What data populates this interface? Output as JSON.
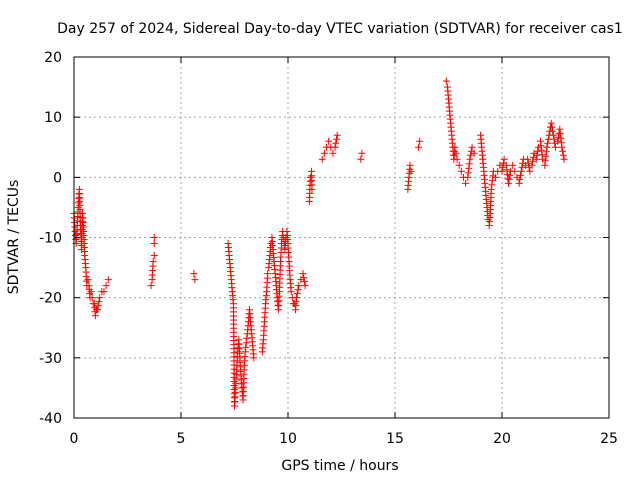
{
  "chart_data": {
    "type": "scatter",
    "title": "Day 257 of 2024, Sidereal Day-to-day VTEC variation (SDTVAR) for receiver cas1",
    "xlabel": "GPS time / hours",
    "ylabel": "SDTVAR / TECUs",
    "xlim": [
      0,
      25
    ],
    "ylim": [
      -40,
      20
    ],
    "xticks": [
      0,
      5,
      10,
      15,
      20,
      25
    ],
    "yticks": [
      -40,
      -30,
      -20,
      -10,
      0,
      10,
      20
    ],
    "xtick_labels": [
      "0",
      "5",
      "10",
      "15",
      "20",
      "25"
    ],
    "ytick_labels": [
      "-40",
      "-30",
      "-20",
      "-10",
      "0",
      "10",
      "20"
    ],
    "grid": true,
    "marker": "plus",
    "marker_color": "#ff0000",
    "series": [
      {
        "name": "SDTVAR",
        "segments": [
          [
            [
              0.0,
              -6
            ],
            [
              0.05,
              -9
            ],
            [
              0.1,
              -11
            ],
            [
              0.15,
              -8
            ],
            [
              0.2,
              -5
            ],
            [
              0.25,
              -2
            ],
            [
              0.3,
              -8
            ],
            [
              0.35,
              -12
            ],
            [
              0.4,
              -6
            ],
            [
              0.45,
              -9
            ],
            [
              0.5,
              -13
            ],
            [
              0.55,
              -15
            ],
            [
              0.6,
              -18
            ],
            [
              0.65,
              -17
            ],
            [
              0.7,
              -18
            ],
            [
              0.75,
              -20
            ],
            [
              0.8,
              -19
            ],
            [
              0.85,
              -20
            ],
            [
              0.9,
              -21
            ],
            [
              0.95,
              -21
            ],
            [
              1.0,
              -23
            ],
            [
              1.05,
              -22
            ],
            [
              1.1,
              -22
            ],
            [
              1.2,
              -20
            ],
            [
              1.3,
              -19
            ],
            [
              1.4,
              -19
            ],
            [
              1.5,
              -18
            ],
            [
              1.6,
              -17
            ]
          ],
          [
            [
              3.6,
              -18
            ],
            [
              3.65,
              -17
            ],
            [
              3.7,
              -14
            ],
            [
              3.75,
              -13
            ]
          ],
          [
            [
              3.75,
              -10
            ],
            [
              3.75,
              -11
            ]
          ],
          [
            [
              5.6,
              -16
            ],
            [
              5.65,
              -17
            ]
          ],
          [
            [
              7.2,
              -11
            ],
            [
              7.25,
              -13
            ],
            [
              7.3,
              -15
            ],
            [
              7.35,
              -17
            ],
            [
              7.4,
              -19
            ],
            [
              7.45,
              -21
            ],
            [
              7.5,
              -38
            ],
            [
              7.55,
              -35
            ],
            [
              7.6,
              -32
            ],
            [
              7.65,
              -29
            ],
            [
              7.7,
              -27
            ],
            [
              7.75,
              -30
            ],
            [
              7.8,
              -33
            ],
            [
              7.85,
              -35
            ],
            [
              7.9,
              -37
            ],
            [
              7.95,
              -32
            ],
            [
              8.0,
              -29
            ],
            [
              8.1,
              -26
            ],
            [
              8.2,
              -22
            ],
            [
              8.4,
              -30
            ]
          ],
          [
            [
              8.8,
              -29
            ],
            [
              8.85,
              -27
            ],
            [
              8.9,
              -24
            ],
            [
              8.95,
              -21
            ],
            [
              9.0,
              -19
            ],
            [
              9.05,
              -16
            ],
            [
              9.1,
              -15
            ],
            [
              9.15,
              -13
            ],
            [
              9.2,
              -11
            ],
            [
              9.25,
              -10
            ],
            [
              9.3,
              -12
            ],
            [
              9.35,
              -14
            ],
            [
              9.4,
              -16
            ],
            [
              9.45,
              -18
            ],
            [
              9.5,
              -20
            ],
            [
              9.55,
              -22
            ],
            [
              9.6,
              -19
            ],
            [
              9.65,
              -14
            ],
            [
              9.7,
              -11
            ],
            [
              9.75,
              -9
            ],
            [
              9.8,
              -10
            ],
            [
              9.85,
              -12
            ],
            [
              9.9,
              -10
            ],
            [
              9.95,
              -9
            ],
            [
              10.0,
              -11
            ],
            [
              10.05,
              -14
            ],
            [
              10.1,
              -17
            ],
            [
              10.15,
              -19
            ],
            [
              10.2,
              -20
            ],
            [
              10.25,
              -21
            ],
            [
              10.3,
              -21
            ],
            [
              10.35,
              -22
            ],
            [
              10.4,
              -20
            ],
            [
              10.5,
              -18
            ],
            [
              10.6,
              -17
            ],
            [
              10.7,
              -16
            ],
            [
              10.8,
              -18
            ]
          ],
          [
            [
              11.0,
              -4
            ],
            [
              11.02,
              -2
            ],
            [
              11.05,
              0
            ],
            [
              11.1,
              1
            ],
            [
              11.12,
              -2
            ]
          ],
          [
            [
              11.6,
              3
            ],
            [
              11.7,
              4
            ],
            [
              11.8,
              5
            ],
            [
              11.9,
              6
            ],
            [
              12.0,
              5
            ],
            [
              12.1,
              4
            ],
            [
              12.2,
              5
            ],
            [
              12.3,
              7
            ]
          ],
          [
            [
              13.4,
              3
            ],
            [
              13.45,
              4
            ]
          ],
          [
            [
              15.6,
              -2
            ],
            [
              15.65,
              0
            ],
            [
              15.7,
              2
            ],
            [
              15.75,
              1
            ]
          ],
          [
            [
              16.1,
              5
            ],
            [
              16.15,
              6
            ]
          ],
          [
            [
              17.4,
              16
            ],
            [
              17.45,
              15
            ],
            [
              17.5,
              13
            ],
            [
              17.55,
              11
            ],
            [
              17.6,
              9
            ],
            [
              17.65,
              7
            ],
            [
              17.7,
              5
            ],
            [
              17.75,
              3
            ],
            [
              17.8,
              5
            ],
            [
              17.85,
              4
            ],
            [
              17.9,
              3
            ],
            [
              18.0,
              2
            ],
            [
              18.1,
              1
            ],
            [
              18.2,
              0
            ],
            [
              18.3,
              -1
            ],
            [
              18.4,
              0
            ],
            [
              18.5,
              3
            ],
            [
              18.6,
              5
            ],
            [
              18.7,
              4
            ]
          ],
          [
            [
              19.0,
              7
            ],
            [
              19.05,
              5
            ],
            [
              19.1,
              3
            ],
            [
              19.15,
              1
            ],
            [
              19.2,
              -1
            ],
            [
              19.25,
              -3
            ],
            [
              19.3,
              -5
            ],
            [
              19.35,
              -7
            ],
            [
              19.4,
              -8
            ],
            [
              19.45,
              -6
            ],
            [
              19.5,
              -2
            ],
            [
              19.6,
              1
            ],
            [
              19.7,
              0
            ],
            [
              19.8,
              1
            ],
            [
              19.9,
              2
            ],
            [
              20.0,
              1
            ],
            [
              20.1,
              3
            ],
            [
              20.2,
              2
            ],
            [
              20.3,
              -1
            ],
            [
              20.4,
              1
            ],
            [
              20.5,
              2
            ],
            [
              20.6,
              1
            ],
            [
              20.7,
              0
            ],
            [
              20.8,
              -1
            ],
            [
              20.9,
              1
            ],
            [
              21.0,
              3
            ],
            [
              21.1,
              2
            ],
            [
              21.2,
              3
            ],
            [
              21.3,
              1
            ],
            [
              21.4,
              2
            ],
            [
              21.5,
              4
            ],
            [
              21.6,
              3
            ],
            [
              21.7,
              5
            ],
            [
              21.8,
              6
            ],
            [
              21.9,
              3
            ],
            [
              22.0,
              2
            ],
            [
              22.1,
              5
            ],
            [
              22.2,
              7
            ],
            [
              22.3,
              9
            ],
            [
              22.4,
              7
            ],
            [
              22.5,
              5
            ],
            [
              22.6,
              6
            ],
            [
              22.7,
              8
            ],
            [
              22.8,
              5
            ],
            [
              22.9,
              3
            ]
          ]
        ]
      }
    ]
  }
}
